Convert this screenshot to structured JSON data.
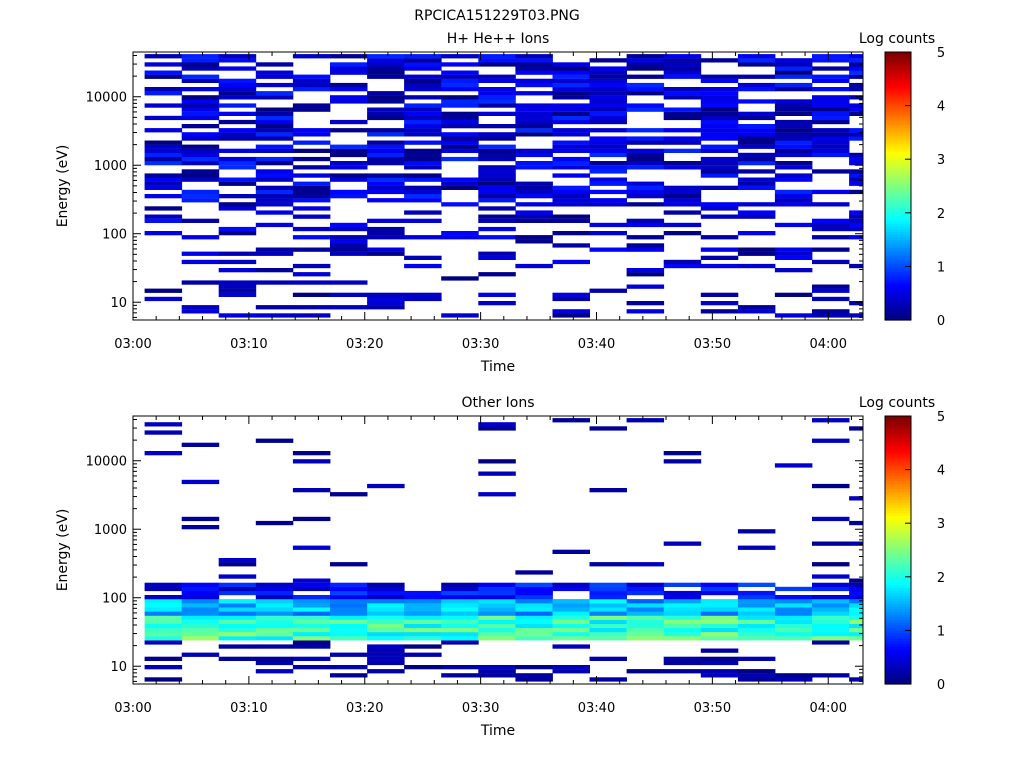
{
  "figure": {
    "title": "RPCICA151229T03.PNG"
  },
  "chart_data": [
    {
      "type": "heatmap",
      "title": "H+ He++ Ions",
      "xlabel": "Time",
      "ylabel": "Energy (eV)",
      "x_ticks": [
        "03:00",
        "03:10",
        "03:20",
        "03:30",
        "03:40",
        "03:50",
        "04:00"
      ],
      "x_range": [
        "03:00",
        "04:03"
      ],
      "y_ticks": [
        "10",
        "100",
        "1000",
        "10000"
      ],
      "y_scale": "log",
      "y_range": [
        5.5,
        45000
      ],
      "colorbar": {
        "label": "Log counts",
        "ticks": [
          "0",
          "1",
          "2",
          "3",
          "4",
          "5"
        ],
        "range": [
          0,
          5
        ]
      },
      "time_start": "03:01",
      "time_step_min": 3.2,
      "columns": 20,
      "seed": 7,
      "profile": "hplus"
    },
    {
      "type": "heatmap",
      "title": "Other Ions",
      "xlabel": "Time",
      "ylabel": "Energy (eV)",
      "x_ticks": [
        "03:00",
        "03:10",
        "03:20",
        "03:30",
        "03:40",
        "03:50",
        "04:00"
      ],
      "x_range": [
        "03:00",
        "04:03"
      ],
      "y_ticks": [
        "10",
        "100",
        "1000",
        "10000"
      ],
      "y_scale": "log",
      "y_range": [
        5.5,
        45000
      ],
      "colorbar": {
        "label": "Log counts",
        "ticks": [
          "0",
          "1",
          "2",
          "3",
          "4",
          "5"
        ],
        "range": [
          0,
          5
        ]
      },
      "time_start": "03:01",
      "time_step_min": 3.2,
      "columns": 20,
      "seed": 19,
      "profile": "other"
    }
  ]
}
